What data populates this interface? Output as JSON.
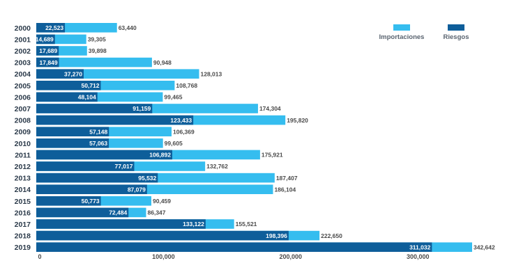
{
  "chart_data": {
    "type": "bar",
    "orientation": "horizontal",
    "title": "",
    "xlabel": "",
    "ylabel": "",
    "xlim": [
      0,
      342642
    ],
    "xticks": [
      0,
      100000,
      200000,
      300000
    ],
    "xtick_labels": [
      "0",
      "100,000",
      "200,000",
      "300,000"
    ],
    "legend_position": "top-right",
    "categories": [
      "2000",
      "2001",
      "2002",
      "2003",
      "2004",
      "2005",
      "2006",
      "2007",
      "2008",
      "2009",
      "2010",
      "2011",
      "2012",
      "2013",
      "2014",
      "2015",
      "2016",
      "2017",
      "2018",
      "2019"
    ],
    "series": [
      {
        "name": "Importaciones",
        "color": "#35bdef",
        "values": [
          63440,
          39305,
          39898,
          90948,
          128013,
          108768,
          99465,
          174304,
          195820,
          106369,
          99605,
          175921,
          132762,
          187407,
          186104,
          90459,
          86347,
          155521,
          222650,
          342642
        ],
        "labels": [
          "63,440",
          "39,305",
          "39,898",
          "90,948",
          "128,013",
          "108,768",
          "99,465",
          "174,304",
          "195,820",
          "106,369",
          "99,605",
          "175,921",
          "132,762",
          "187,407",
          "186,104",
          "90,459",
          "86,347",
          "155,521",
          "222,650",
          "342,642"
        ]
      },
      {
        "name": "Riesgos",
        "color": "#0e5e9a",
        "values": [
          22523,
          14689,
          17689,
          17849,
          37270,
          50712,
          48104,
          91159,
          123433,
          57148,
          57063,
          106892,
          77017,
          95532,
          87079,
          50773,
          72484,
          133122,
          198396,
          311032
        ],
        "labels": [
          "22,523",
          "14,689",
          "17,689",
          "17,849",
          "37,270",
          "50,712",
          "48,104",
          "91,159",
          "123,433",
          "57,148",
          "57,063",
          "106,892",
          "77,017",
          "95,532",
          "87,079",
          "50,773",
          "72,484",
          "133,122",
          "198,396",
          "311,032"
        ]
      }
    ]
  }
}
